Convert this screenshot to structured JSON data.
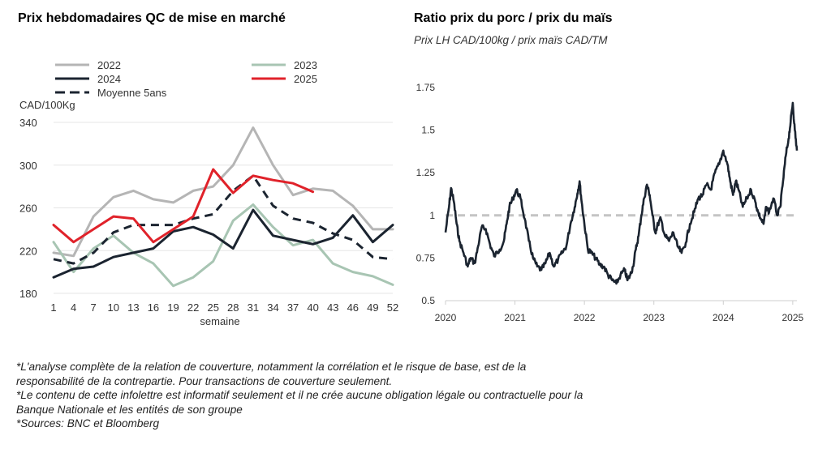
{
  "chart_data": [
    {
      "type": "line",
      "title": "Prix hebdomadaires QC de mise en marché",
      "unit_label": "CAD/100Kg",
      "xlabel": "semaine",
      "ylim": [
        180,
        340
      ],
      "yticks": [
        "340",
        "300",
        "260",
        "220",
        "180"
      ],
      "xticks": [
        "1",
        "4",
        "7",
        "10",
        "13",
        "16",
        "19",
        "22",
        "25",
        "28",
        "31",
        "34",
        "37",
        "40",
        "43",
        "46",
        "49",
        "52"
      ],
      "x": [
        1,
        4,
        7,
        10,
        13,
        16,
        19,
        22,
        25,
        28,
        31,
        34,
        37,
        40,
        43,
        46,
        49,
        52
      ],
      "series": [
        {
          "name": "2022",
          "color": "#b5b5b5",
          "dash": "",
          "values": [
            218,
            215,
            252,
            270,
            276,
            268,
            265,
            276,
            280,
            300,
            335,
            300,
            272,
            278,
            276,
            262,
            240,
            240
          ]
        },
        {
          "name": "2023",
          "color": "#a8c5b3",
          "dash": "",
          "values": [
            228,
            200,
            222,
            234,
            218,
            208,
            187,
            195,
            210,
            248,
            263,
            242,
            225,
            230,
            208,
            200,
            196,
            188
          ]
        },
        {
          "name": "2024",
          "color": "#1b2430",
          "dash": "",
          "values": [
            195,
            203,
            205,
            214,
            218,
            222,
            238,
            242,
            235,
            222,
            258,
            234,
            230,
            226,
            232,
            253,
            228,
            244
          ]
        },
        {
          "name": "2025",
          "color": "#e0222a",
          "dash": "",
          "values": [
            244,
            228,
            240,
            252,
            250,
            228,
            240,
            252,
            296,
            274,
            290,
            286,
            283,
            275,
            null,
            null,
            null,
            null
          ]
        },
        {
          "name": "Moyenne 5ans",
          "color": "#1b2430",
          "dash": "10,7",
          "values": [
            212,
            208,
            218,
            237,
            244,
            244,
            244,
            250,
            254,
            276,
            290,
            262,
            250,
            246,
            236,
            230,
            214,
            212
          ]
        }
      ]
    },
    {
      "type": "line",
      "title": "Ratio prix du porc / prix du maïs",
      "subtitle": "Prix LH CAD/100kg / prix maïs CAD/TM",
      "ylim": [
        0.5,
        1.75
      ],
      "yticks": [
        "1.75",
        "1.5",
        "1.25",
        "1",
        "0.75",
        "0.5"
      ],
      "xticks": [
        "2020",
        "2021",
        "2022",
        "2023",
        "2024",
        "2025"
      ],
      "reference_line": 1.0,
      "series": [
        {
          "name": "",
          "color": "#1b2430",
          "x": [
            2020.0,
            2020.05,
            2020.08,
            2020.12,
            2020.16,
            2020.2,
            2020.26,
            2020.32,
            2020.36,
            2020.42,
            2020.47,
            2020.52,
            2020.58,
            2020.64,
            2020.7,
            2020.78,
            2020.84,
            2020.88,
            2020.92,
            2020.97,
            2021.02,
            2021.08,
            2021.14,
            2021.2,
            2021.26,
            2021.32,
            2021.38,
            2021.44,
            2021.5,
            2021.56,
            2021.62,
            2021.68,
            2021.74,
            2021.8,
            2021.86,
            2021.9,
            2021.93,
            2021.96,
            2022.0,
            2022.05,
            2022.1,
            2022.16,
            2022.22,
            2022.28,
            2022.34,
            2022.4,
            2022.46,
            2022.52,
            2022.58,
            2022.62,
            2022.66,
            2022.7,
            2022.74,
            2022.78,
            2022.82,
            2022.86,
            2022.9,
            2022.94,
            2022.98,
            2023.02,
            2023.06,
            2023.1,
            2023.16,
            2023.22,
            2023.28,
            2023.34,
            2023.4,
            2023.46,
            2023.52,
            2023.58,
            2023.64,
            2023.7,
            2023.76,
            2023.82,
            2023.88,
            2023.94,
            2024.0,
            2024.06,
            2024.1,
            2024.14,
            2024.18,
            2024.22,
            2024.28,
            2024.34,
            2024.4,
            2024.46,
            2024.5,
            2024.54,
            2024.58,
            2024.62,
            2024.66,
            2024.72,
            2024.78,
            2024.82,
            2024.86,
            2024.9,
            2024.94,
            2024.97,
            2025.0,
            2025.03,
            2025.06
          ],
          "values": [
            0.9,
            1.05,
            1.16,
            1.08,
            0.95,
            0.85,
            0.78,
            0.7,
            0.75,
            0.72,
            0.82,
            0.93,
            0.92,
            0.83,
            0.76,
            0.8,
            0.85,
            0.95,
            1.05,
            1.1,
            1.15,
            1.1,
            0.98,
            0.85,
            0.75,
            0.7,
            0.68,
            0.72,
            0.78,
            0.7,
            0.74,
            0.78,
            0.82,
            0.95,
            1.05,
            1.13,
            1.2,
            1.08,
            0.95,
            0.8,
            0.78,
            0.75,
            0.71,
            0.7,
            0.65,
            0.62,
            0.6,
            0.65,
            0.68,
            0.62,
            0.65,
            0.7,
            0.8,
            0.88,
            1.0,
            1.1,
            1.18,
            1.12,
            1.0,
            0.9,
            0.95,
            0.98,
            0.88,
            0.85,
            0.9,
            0.82,
            0.78,
            0.84,
            0.95,
            1.02,
            1.1,
            1.12,
            1.18,
            1.15,
            1.25,
            1.3,
            1.38,
            1.3,
            1.2,
            1.12,
            1.2,
            1.15,
            1.05,
            1.1,
            1.15,
            1.08,
            1.02,
            0.98,
            0.95,
            1.05,
            1.02,
            1.1,
            1.0,
            1.05,
            1.2,
            1.35,
            1.45,
            1.55,
            1.66,
            1.5,
            1.38
          ]
        }
      ]
    }
  ],
  "notes": [
    "*L'analyse complète de la relation de couverture, notamment la corrélation et le risque de base, est de la",
    "responsabilité de la contrepartie. Pour transactions de couverture seulement.",
    "*Le contenu de cette infolettre est informatif seulement et il ne crée aucune obligation légale ou contractuelle pour la",
    "Banque Nationale et les entités de son groupe",
    "*Sources: BNC et Bloomberg"
  ]
}
